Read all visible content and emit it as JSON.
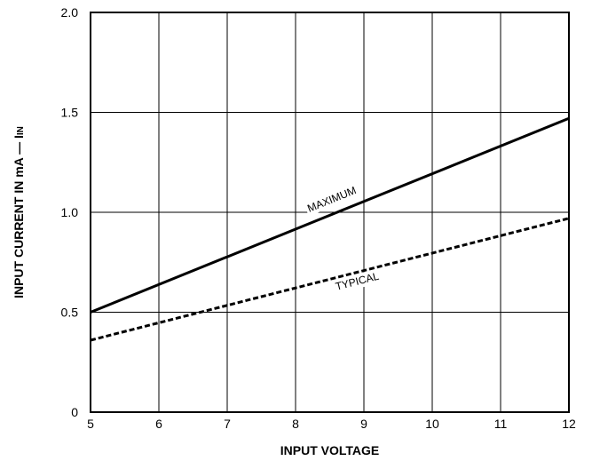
{
  "chart_data": {
    "type": "line",
    "xlabel": "INPUT VOLTAGE",
    "ylabel": "INPUT CURRENT IN mA — I",
    "ylabel_subscript": "IN",
    "xlim": [
      5,
      12
    ],
    "ylim": [
      0,
      2.0
    ],
    "x_ticks": [
      "5",
      "6",
      "7",
      "8",
      "9",
      "10",
      "11",
      "12"
    ],
    "y_ticks": [
      "0",
      "0.5",
      "1.0",
      "1.5",
      "2.0"
    ],
    "grid": true,
    "series": [
      {
        "name": "MAXIMUM",
        "style": "solid",
        "x": [
          5,
          12
        ],
        "y": [
          0.5,
          1.47
        ]
      },
      {
        "name": "TYPICAL",
        "style": "dashed",
        "x": [
          5,
          12
        ],
        "y": [
          0.36,
          0.97
        ]
      }
    ],
    "annotations": [
      {
        "text": "MAXIMUM",
        "x": 8.2,
        "y": 1.0
      },
      {
        "text": "TYPICAL",
        "x": 8.6,
        "y": 0.61
      }
    ]
  }
}
